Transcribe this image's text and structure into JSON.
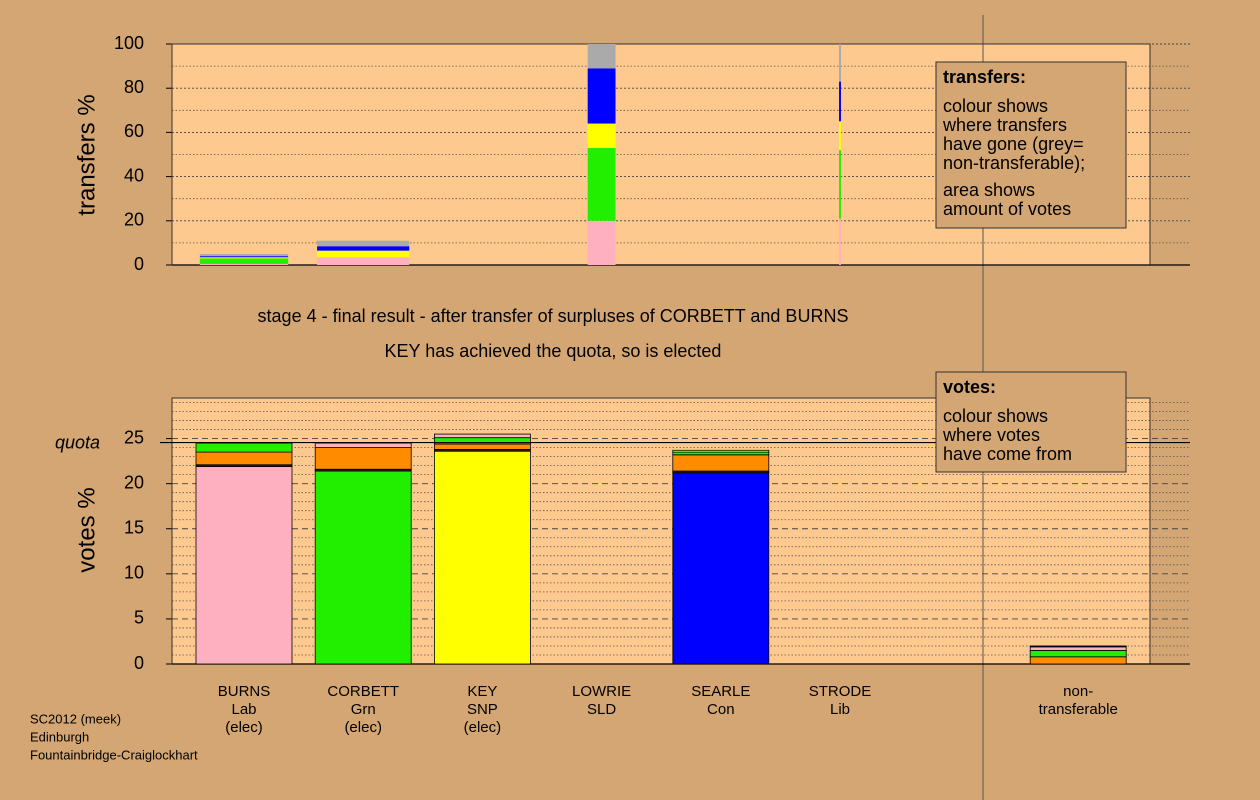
{
  "chart_data": [
    {
      "type": "bar",
      "stacked": true,
      "ylabel": "transfers %",
      "ylim": [
        0,
        100
      ],
      "yticks": [
        0,
        20,
        40,
        60,
        80,
        100
      ],
      "minor_yticks": [
        10,
        30,
        50,
        70,
        90
      ],
      "amounts": [
        0.92,
        0.96,
        null,
        0.29,
        null,
        0.02,
        null
      ],
      "series": [
        {
          "name": "Lab",
          "color": "#ffb0c0",
          "values": [
            0.5,
            3.5,
            null,
            20,
            null,
            21,
            null
          ]
        },
        {
          "name": "Grn",
          "color": "#22ee00",
          "values": [
            2.5,
            null,
            null,
            33,
            null,
            31,
            null
          ]
        },
        {
          "name": "SNP",
          "color": "#ffff00",
          "values": [
            0.5,
            3,
            null,
            11,
            null,
            13,
            null
          ]
        },
        {
          "name": "Con",
          "color": "#0000ff",
          "values": [
            0.5,
            2,
            null,
            25,
            null,
            18,
            null
          ]
        },
        {
          "name": "non-transferable",
          "color": "#aaaaaa",
          "values": [
            1,
            2.5,
            null,
            11,
            null,
            17,
            null
          ]
        }
      ],
      "annotation": {
        "title": "transfers:",
        "paragraphs": [
          [
            "colour shows",
            "where transfers",
            "have gone (grey=",
            "non-transferable);"
          ],
          [
            "area shows",
            "amount of votes"
          ]
        ]
      }
    },
    {
      "type": "bar",
      "stacked": true,
      "ylabel": "votes %",
      "title": [
        "stage 4 - final result - after transfer of surpluses of CORBETT and BURNS",
        "KEY has achieved the quota, so is elected"
      ],
      "categories": [
        "BURNS",
        "CORBETT",
        "KEY",
        "LOWRIE",
        "SEARLE",
        "STRODE",
        "non-transferable"
      ],
      "parties": [
        "Lab",
        "Grn",
        "SNP",
        "SLD",
        "Con",
        "Lib",
        null
      ],
      "status": [
        "(elec)",
        "(elec)",
        "(elec)",
        null,
        null,
        null,
        null
      ],
      "ylim": [
        0,
        29.5
      ],
      "yticks": [
        0,
        5,
        10,
        15,
        20,
        25
      ],
      "minor_yticks": [
        1,
        2,
        3,
        4,
        6,
        7,
        8,
        9,
        11,
        12,
        13,
        14,
        16,
        17,
        18,
        19,
        21,
        22,
        23,
        24,
        26,
        27,
        28,
        29
      ],
      "quota": {
        "label": "quota",
        "value": 24.56
      },
      "series": [
        {
          "name": "Lib",
          "color": "#222222",
          "values": [
            0.2,
            0.2,
            0.2,
            null,
            0.2,
            null,
            null
          ]
        },
        {
          "name": "SLD",
          "color": "#ff8c00",
          "values": [
            1.4,
            2.4,
            0.6,
            null,
            1.8,
            null,
            0.8
          ]
        },
        {
          "name": "Grn",
          "color": "#22ee00",
          "values": [
            1.0,
            21.4,
            0.7,
            null,
            0.3,
            null,
            0.7
          ]
        },
        {
          "name": "Lab",
          "color": "#ffb0c0",
          "values": [
            21.9,
            0.5,
            0.4,
            null,
            null,
            null,
            0.4
          ]
        },
        {
          "name": "SNP",
          "color": "#ffff00",
          "values": [
            null,
            null,
            23.6,
            null,
            0.2,
            null,
            null
          ]
        },
        {
          "name": "Con",
          "color": "#0000ff",
          "values": [
            null,
            null,
            null,
            null,
            21.2,
            null,
            0.1
          ]
        }
      ],
      "annotation": {
        "title": "votes:",
        "paragraphs": [
          [
            "colour shows",
            "where votes",
            "have come from"
          ]
        ]
      }
    }
  ],
  "footer": [
    "SC2012 (meek)",
    "Edinburgh",
    "Fountainbridge-Craiglockhart"
  ]
}
